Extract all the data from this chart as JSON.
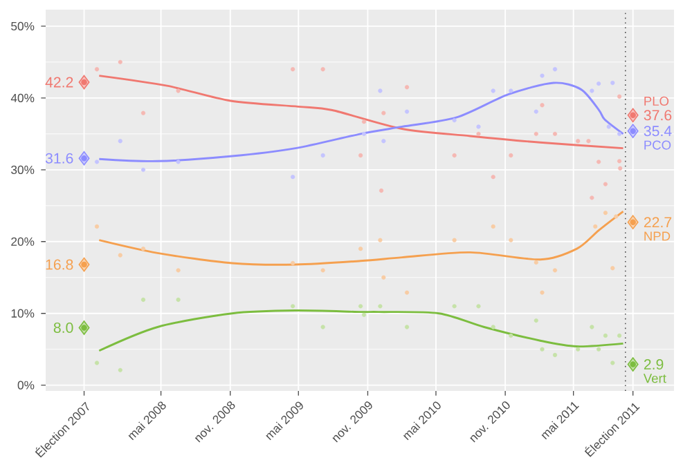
{
  "chart_data": {
    "type": "line",
    "xlim": [
      "2007-06-30",
      "2012-01-23"
    ],
    "ylim": [
      -0.8,
      52.3
    ],
    "xticks": [
      {
        "value": "2007-10-10",
        "label": "Élection 2007"
      },
      {
        "value": "2008-05-01",
        "label": "mai 2008"
      },
      {
        "value": "2008-11-01",
        "label": "nov. 2008"
      },
      {
        "value": "2009-05-01",
        "label": "mai 2009"
      },
      {
        "value": "2009-11-01",
        "label": "nov. 2009"
      },
      {
        "value": "2010-05-01",
        "label": "mai 2010"
      },
      {
        "value": "2010-11-01",
        "label": "nov. 2010"
      },
      {
        "value": "2011-05-01",
        "label": "mai 2011"
      },
      {
        "value": "2011-10-06",
        "label": "Élection 2011"
      }
    ],
    "yticks": [
      {
        "value": 0,
        "label": "0%"
      },
      {
        "value": 10,
        "label": "10%"
      },
      {
        "value": 20,
        "label": "20%"
      },
      {
        "value": 30,
        "label": "30%"
      },
      {
        "value": 40,
        "label": "40%"
      },
      {
        "value": 50,
        "label": "50%"
      }
    ],
    "grid": true,
    "ref_lines": [
      {
        "axis": "x",
        "value": "2011-09-16",
        "color": "#4d4d4d",
        "line_style": "dotted"
      }
    ],
    "series": [
      {
        "type": "scatter",
        "marker": "circle",
        "color": "#f5b8b3",
        "x": [
          "2007-11-13",
          "2008-01-14",
          "2008-03-15",
          "2008-06-16",
          "2009-04-16",
          "2009-07-05",
          "2009-10-13",
          "2009-10-22",
          "2009-12-07",
          "2009-12-13",
          "2010-02-13",
          "2010-06-19",
          "2010-08-22",
          "2010-09-30",
          "2010-11-16",
          "2011-01-22",
          "2011-02-07",
          "2011-03-13",
          "2011-05-13",
          "2011-06-10",
          "2011-06-19",
          "2011-07-07",
          "2011-07-25",
          "2011-08-03",
          "2011-08-31",
          "2011-08-31",
          "2011-09-02"
        ],
        "values": [
          44.0,
          45.0,
          37.9,
          41.0,
          44.0,
          44.0,
          32.0,
          36.7,
          27.1,
          37.9,
          41.5,
          32.0,
          35.0,
          29.0,
          32.0,
          35.0,
          39.0,
          35.0,
          34.0,
          34.0,
          26.1,
          31.1,
          28.0,
          null,
          40.2,
          31.2,
          30.2
        ]
      },
      {
        "type": "scatter",
        "marker": "circle",
        "color": "#c4c4ff",
        "x": [
          "2007-11-13",
          "2008-01-14",
          "2008-03-15",
          "2008-06-16",
          "2009-04-16",
          "2009-07-05",
          "2009-10-22",
          "2009-12-04",
          "2009-12-13",
          "2010-02-13",
          "2010-06-19",
          "2010-08-22",
          "2010-09-30",
          "2010-11-16",
          "2011-01-22",
          "2011-02-07",
          "2011-03-13",
          "2011-06-19",
          "2011-07-07",
          "2011-08-03",
          "2011-08-13",
          "2011-08-31"
        ],
        "values": [
          31.1,
          34.0,
          30.0,
          31.1,
          29.0,
          32.0,
          35.0,
          41.0,
          34.0,
          38.1,
          36.9,
          36.0,
          41.0,
          41.0,
          38.1,
          43.1,
          44.0,
          41.0,
          42.0,
          36.0,
          42.1,
          35.0
        ]
      },
      {
        "type": "scatter",
        "marker": "circle",
        "color": "#f8cca4",
        "x": [
          "2007-11-13",
          "2008-01-14",
          "2008-03-15",
          "2008-06-16",
          "2009-04-16",
          "2009-07-05",
          "2009-10-13",
          "2009-12-04",
          "2009-12-13",
          "2010-02-13",
          "2010-06-19",
          "2010-09-30",
          "2010-11-16",
          "2011-01-22",
          "2011-02-07",
          "2011-03-13",
          "2011-06-28",
          "2011-07-25",
          "2011-08-13",
          "2011-08-22"
        ],
        "values": [
          22.1,
          18.1,
          19.0,
          16.0,
          17.0,
          16.0,
          19.0,
          20.2,
          15.0,
          12.9,
          20.2,
          22.1,
          20.2,
          17.1,
          12.9,
          16.0,
          22.1,
          24.0,
          16.3,
          23.5
        ]
      },
      {
        "type": "scatter",
        "marker": "circle",
        "color": "#c6e2a8",
        "x": [
          "2007-11-13",
          "2008-01-14",
          "2008-03-15",
          "2008-06-16",
          "2009-04-16",
          "2009-07-05",
          "2009-10-13",
          "2009-10-22",
          "2009-12-04",
          "2010-02-13",
          "2010-06-19",
          "2010-08-22",
          "2010-09-30",
          "2010-11-16",
          "2011-01-22",
          "2011-02-07",
          "2011-03-13",
          "2011-05-13",
          "2011-06-19",
          "2011-07-07",
          "2011-07-25",
          "2011-08-13",
          "2011-08-31"
        ],
        "values": [
          3.1,
          2.1,
          11.9,
          11.9,
          11.0,
          8.1,
          11.0,
          9.8,
          11.0,
          8.1,
          11.0,
          11.0,
          8.1,
          6.9,
          9.0,
          5.0,
          4.2,
          5.0,
          8.1,
          5.0,
          6.9,
          3.1,
          6.9
        ]
      },
      {
        "marker": "none",
        "color": "#f07870",
        "x": [
          "2007-11-19",
          "2008-05-17",
          "2008-11-02",
          "2009-04-30",
          "2009-07-30",
          "2010-01-31",
          "2010-07-31",
          "2011-02-02",
          "2011-09-10"
        ],
        "values": [
          43.1,
          41.7,
          39.6,
          38.8,
          38.3,
          35.7,
          34.7,
          33.8,
          33.0
        ]
      },
      {
        "marker": "none",
        "color": "#8c8cff",
        "x": [
          "2007-11-19",
          "2008-04-22",
          "2008-11-06",
          "2009-04-23",
          "2009-10-13",
          "2010-01-31",
          "2010-06-25",
          "2010-11-09",
          "2011-03-09",
          "2011-05-21",
          "2011-07-08",
          "2011-07-23",
          "2011-09-10"
        ],
        "values": [
          31.5,
          31.2,
          31.9,
          33.0,
          35.0,
          36.0,
          37.3,
          40.5,
          42.1,
          41.2,
          38.3,
          37.0,
          35.0
        ]
      },
      {
        "marker": "none",
        "color": "#f5a04f",
        "x": [
          "2007-11-19",
          "2008-04-22",
          "2008-11-06",
          "2009-04-23",
          "2009-10-13",
          "2010-01-31",
          "2010-07-31",
          "2011-02-02",
          "2011-05-10",
          "2011-07-08",
          "2011-09-10"
        ],
        "values": [
          20.2,
          18.4,
          17.0,
          16.8,
          17.3,
          17.8,
          18.5,
          17.5,
          19.0,
          21.6,
          24.2
        ]
      },
      {
        "marker": "none",
        "color": "#7cbd3f",
        "x": [
          "2007-11-19",
          "2008-04-22",
          "2008-11-06",
          "2009-04-23",
          "2009-10-13",
          "2009-11-30",
          "2010-05-09",
          "2010-09-06",
          "2011-02-02",
          "2011-05-10",
          "2011-09-10"
        ],
        "values": [
          4.8,
          8.1,
          10.0,
          10.4,
          10.2,
          10.2,
          10.0,
          8.1,
          6.2,
          5.4,
          5.8
        ]
      },
      {
        "type": "scatter",
        "marker": "diamond",
        "name": "PLO",
        "color": "#f07870",
        "x": [
          "2007-10-10",
          "2011-10-06"
        ],
        "values": [
          42.2,
          37.6
        ],
        "value_labels": [
          "42.2",
          "37.6"
        ]
      },
      {
        "type": "scatter",
        "marker": "diamond",
        "name": "PCO",
        "color": "#8c8cff",
        "x": [
          "2007-10-10",
          "2011-10-06"
        ],
        "values": [
          31.6,
          35.4
        ],
        "value_labels": [
          "31.6",
          "35.4"
        ]
      },
      {
        "type": "scatter",
        "marker": "diamond",
        "name": "NPD",
        "color": "#f5a04f",
        "x": [
          "2007-10-10",
          "2011-10-06"
        ],
        "values": [
          16.8,
          22.7
        ],
        "value_labels": [
          "16.8",
          "22.7"
        ]
      },
      {
        "type": "scatter",
        "marker": "diamond",
        "name": "Vert",
        "color": "#7cbd3f",
        "x": [
          "2007-10-10",
          "2011-10-06"
        ],
        "values": [
          8.0,
          2.9
        ],
        "value_labels": [
          "8.0",
          "2.9"
        ]
      }
    ]
  }
}
